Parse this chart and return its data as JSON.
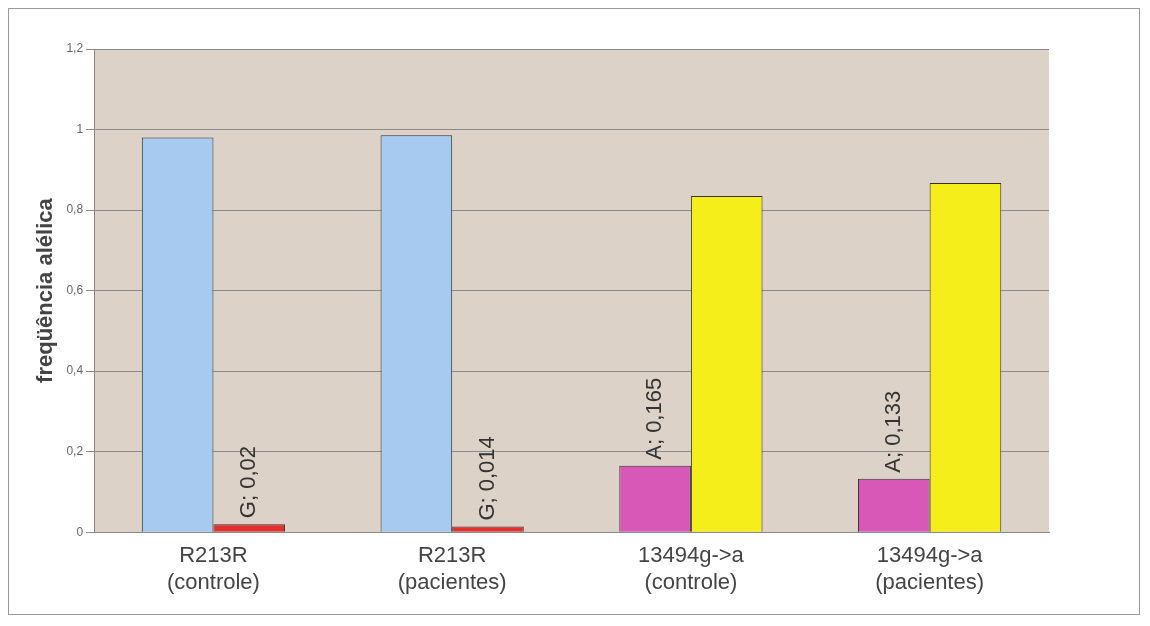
{
  "chart_data": {
    "type": "bar",
    "ylabel": "freqüência alélica",
    "categories": [
      "R213R\n(controle)",
      "R213R\n(pacientes)",
      "13494g->a\n(controle)",
      "13494g->a\n(pacientes)"
    ],
    "series": [
      {
        "colors": [
          "#a6caf0",
          "#a6caf0",
          "#d858b8",
          "#d858b8"
        ],
        "values": [
          0.98,
          0.986,
          0.165,
          0.133
        ],
        "value_labels": [
          null,
          null,
          "A; 0,165",
          "A; 0,133"
        ]
      },
      {
        "colors": [
          "#e03030",
          "#e03030",
          "#f5ee1a",
          "#f5ee1a"
        ],
        "values": [
          0.02,
          0.014,
          0.835,
          0.867
        ],
        "value_labels": [
          "G; 0,02",
          "G; 0,014",
          null,
          null
        ]
      }
    ],
    "ylim": [
      0,
      1.2
    ],
    "yticks": [
      0,
      {
        "value": 0.2,
        "label": "0,2"
      },
      {
        "value": 0.4,
        "label": "0,4"
      },
      {
        "value": 0.6,
        "label": "0,6"
      },
      {
        "value": 0.8,
        "label": "0,8"
      },
      1,
      {
        "value": 1.2,
        "label": "1,2"
      }
    ],
    "grid": "y",
    "legend": false
  }
}
